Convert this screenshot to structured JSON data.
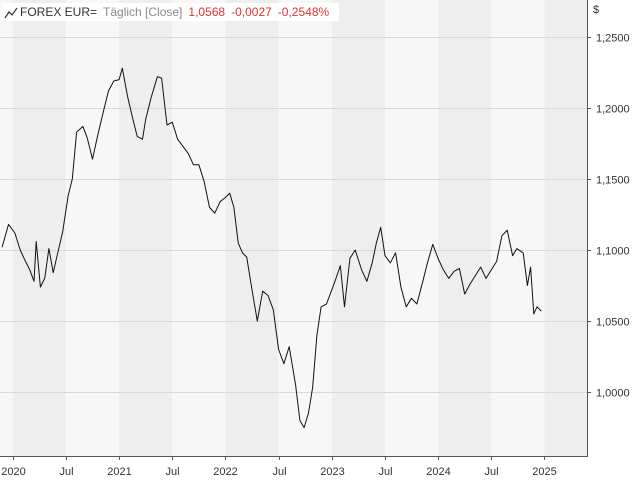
{
  "header": {
    "symbol": "FOREX EUR=",
    "interval": "Täglich [Close]",
    "last": "1,0568",
    "change": "-0,0027",
    "change_pct": "-0,2548%",
    "icon": "line-chart-icon"
  },
  "colors": {
    "line": "#111111",
    "band_light": "#f7f7f7",
    "band_dark": "#eeeeee",
    "grid": "#d8d8d8",
    "down": "#e3342f"
  },
  "chart_data": {
    "type": "line",
    "currency": "$",
    "y_ticks": [
      "1,2500",
      "1,2000",
      "1,1500",
      "1,1000",
      "1,0500",
      "1,0000"
    ],
    "y_tick_values": [
      1.25,
      1.2,
      1.15,
      1.1,
      1.05,
      1.0
    ],
    "x_ticks": [
      "2020",
      "Jul",
      "2021",
      "Jul",
      "2022",
      "Jul",
      "2023",
      "Jul",
      "2024",
      "Jul",
      "2025"
    ],
    "x_tick_values": [
      2020.0,
      2020.5,
      2021.0,
      2021.5,
      2022.0,
      2022.5,
      2023.0,
      2023.5,
      2024.0,
      2024.5,
      2025.0
    ],
    "xlim": [
      2019.88,
      2025.4
    ],
    "ylim": [
      0.955,
      1.276
    ],
    "grid": true,
    "series": [
      {
        "x": [
          2019.9,
          2019.96,
          2020.02,
          2020.07,
          2020.12,
          2020.16,
          2020.2,
          2020.22,
          2020.26,
          2020.3,
          2020.34,
          2020.38,
          2020.42,
          2020.47,
          2020.52,
          2020.56,
          2020.6,
          2020.66,
          2020.7,
          2020.75,
          2020.8,
          2020.85,
          2020.9,
          2020.95,
          2021.0,
          2021.03,
          2021.08,
          2021.13,
          2021.17,
          2021.22,
          2021.25,
          2021.3,
          2021.36,
          2021.4,
          2021.45,
          2021.5,
          2021.55,
          2021.6,
          2021.65,
          2021.7,
          2021.75,
          2021.8,
          2021.85,
          2021.9,
          2021.95,
          2022.0,
          2022.04,
          2022.08,
          2022.12,
          2022.16,
          2022.2,
          2022.25,
          2022.3,
          2022.35,
          2022.4,
          2022.45,
          2022.5,
          2022.55,
          2022.6,
          2022.66,
          2022.7,
          2022.74,
          2022.78,
          2022.82,
          2022.86,
          2022.9,
          2022.95,
          2023.0,
          2023.04,
          2023.08,
          2023.12,
          2023.17,
          2023.22,
          2023.28,
          2023.33,
          2023.38,
          2023.42,
          2023.46,
          2023.5,
          2023.55,
          2023.6,
          2023.65,
          2023.7,
          2023.75,
          2023.8,
          2023.86,
          2023.9,
          2023.95,
          2024.0,
          2024.05,
          2024.1,
          2024.15,
          2024.2,
          2024.25,
          2024.3,
          2024.35,
          2024.4,
          2024.45,
          2024.5,
          2024.55,
          2024.6,
          2024.65,
          2024.7,
          2024.74,
          2024.8,
          2024.84,
          2024.87,
          2024.9,
          2024.93,
          2024.97
        ],
        "y": [
          1.102,
          1.118,
          1.112,
          1.1,
          1.092,
          1.086,
          1.078,
          1.106,
          1.074,
          1.08,
          1.101,
          1.084,
          1.097,
          1.113,
          1.138,
          1.15,
          1.183,
          1.187,
          1.179,
          1.164,
          1.181,
          1.197,
          1.212,
          1.219,
          1.22,
          1.228,
          1.208,
          1.192,
          1.18,
          1.178,
          1.192,
          1.207,
          1.222,
          1.221,
          1.188,
          1.19,
          1.178,
          1.173,
          1.168,
          1.16,
          1.16,
          1.148,
          1.13,
          1.126,
          1.134,
          1.137,
          1.14,
          1.13,
          1.105,
          1.098,
          1.095,
          1.072,
          1.05,
          1.071,
          1.068,
          1.058,
          1.03,
          1.02,
          1.032,
          1.005,
          0.98,
          0.975,
          0.985,
          1.003,
          1.04,
          1.06,
          1.062,
          1.072,
          1.08,
          1.089,
          1.06,
          1.094,
          1.1,
          1.086,
          1.078,
          1.091,
          1.105,
          1.116,
          1.096,
          1.091,
          1.098,
          1.074,
          1.06,
          1.066,
          1.062,
          1.079,
          1.091,
          1.104,
          1.094,
          1.086,
          1.08,
          1.085,
          1.087,
          1.069,
          1.076,
          1.082,
          1.088,
          1.08,
          1.086,
          1.092,
          1.11,
          1.114,
          1.096,
          1.101,
          1.098,
          1.075,
          1.088,
          1.055,
          1.06,
          1.057
        ]
      }
    ]
  }
}
